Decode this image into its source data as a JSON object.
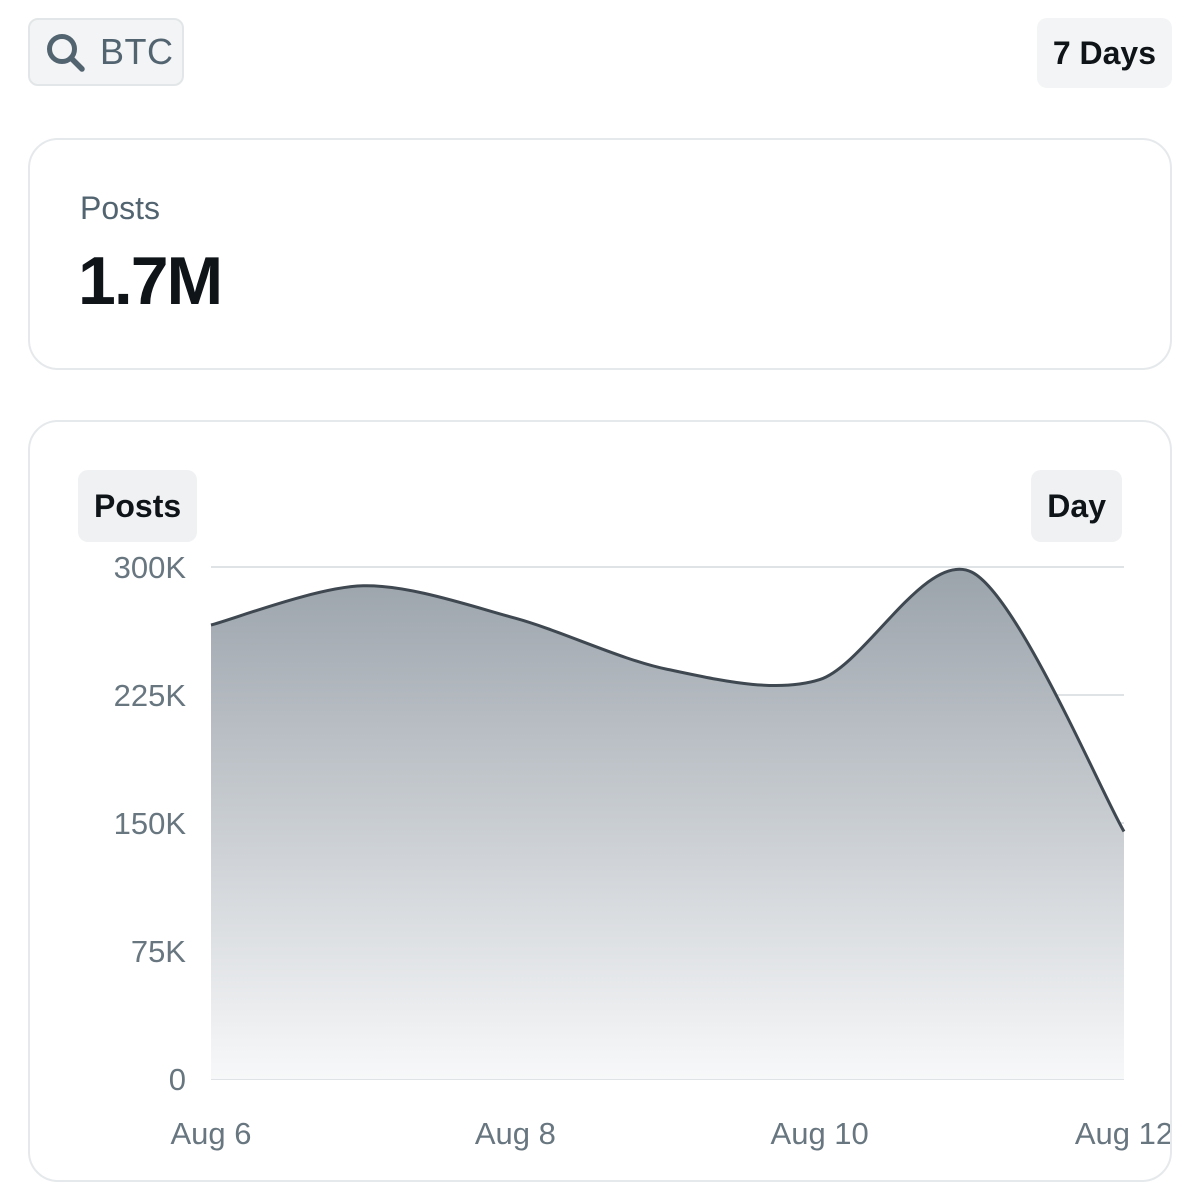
{
  "search": {
    "query": "BTC",
    "icon": "search-icon"
  },
  "range": {
    "label": "7 Days"
  },
  "summary": {
    "label": "Posts",
    "value": "1.7M"
  },
  "chart_panel": {
    "metric_label": "Posts",
    "granularity_label": "Day"
  },
  "colors": {
    "line": "#3f4850",
    "fill_top": "#9ba3ab",
    "fill_bottom": "#f7f8f9",
    "grid": "#dfe3e6"
  },
  "chart_data": {
    "type": "area",
    "x": [
      "Aug 6",
      "Aug 7",
      "Aug 8",
      "Aug 9",
      "Aug 10",
      "Aug 11",
      "Aug 12"
    ],
    "x_tick_labels": [
      "Aug 6",
      "Aug 8",
      "Aug 10",
      "Aug 12"
    ],
    "y_tick_labels": [
      "0",
      "75K",
      "150K",
      "225K",
      "300K"
    ],
    "series": [
      {
        "values": [
          266000,
          289000,
          270000,
          240000,
          234000,
          297000,
          145000
        ]
      }
    ],
    "ylim": [
      0,
      300000
    ],
    "grid": true,
    "title": "",
    "xlabel": "",
    "ylabel": ""
  }
}
